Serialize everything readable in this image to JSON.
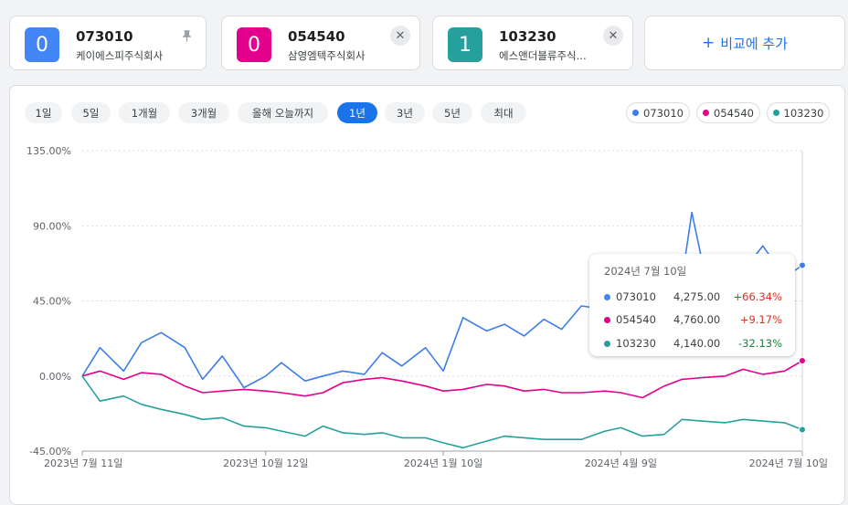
{
  "cards": [
    {
      "badge": "0",
      "ticker": "073010",
      "name": "케이에스피주식회사",
      "color": "#4285f4",
      "action": "pin-icon"
    },
    {
      "badge": "0",
      "ticker": "054540",
      "name": "삼영엠텍주식회사",
      "color": "#e3008c",
      "action": "close-icon"
    },
    {
      "badge": "1",
      "ticker": "103230",
      "name": "에스앤더블류주식...",
      "color": "#26a09d",
      "action": "close-icon"
    }
  ],
  "add_compare": {
    "label": "비교에 추가"
  },
  "ranges": [
    "1일",
    "5일",
    "1개월",
    "3개월",
    "올해 오늘까지",
    "1년",
    "3년",
    "5년",
    "최대"
  ],
  "selected_range": "1년",
  "tooltip": {
    "date": "2024년 7월 10일",
    "rows": [
      {
        "ticker": "073010",
        "price": "4,275.00",
        "change": "+66.34%",
        "change_color": "#d93025",
        "color": "#4285f4"
      },
      {
        "ticker": "054540",
        "price": "4,760.00",
        "change": "+9.17%",
        "change_color": "#d93025",
        "color": "#e3008c"
      },
      {
        "ticker": "103230",
        "price": "4,140.00",
        "change": "-32.13%",
        "change_color": "#188038",
        "color": "#26a09d"
      }
    ]
  },
  "chart_data": {
    "type": "line",
    "y_tick_labels": [
      "135.00%",
      "90.00%",
      "45.00%",
      "0.00%",
      "-45.00%"
    ],
    "y_ticks": [
      135,
      90,
      45,
      0,
      -45
    ],
    "ylim": [
      -45,
      135
    ],
    "x_tick_labels": [
      "2023년 7월 11일",
      "2023년 10월 12일",
      "2024년 1월 10일",
      "2024년 4월 9일",
      "2024년 7월 10일"
    ],
    "x_tick_dates": [
      "2023-07-11",
      "2023-10-12",
      "2024-01-10",
      "2024-04-09",
      "2024-07-10"
    ],
    "x_range": [
      "2023-07-11",
      "2024-07-10"
    ],
    "grid": true,
    "legend": "top-right",
    "series": [
      {
        "name": "073010",
        "color": "#3d7ee6",
        "x": [
          "2023-07-11",
          "2023-07-20",
          "2023-08-01",
          "2023-08-10",
          "2023-08-20",
          "2023-09-01",
          "2023-09-10",
          "2023-09-20",
          "2023-10-01",
          "2023-10-12",
          "2023-10-20",
          "2023-11-01",
          "2023-11-10",
          "2023-11-20",
          "2023-12-01",
          "2023-12-10",
          "2023-12-20",
          "2024-01-01",
          "2024-01-10",
          "2024-01-20",
          "2024-02-01",
          "2024-02-10",
          "2024-02-20",
          "2024-03-01",
          "2024-03-10",
          "2024-03-20",
          "2024-04-01",
          "2024-04-09",
          "2024-04-20",
          "2024-05-01",
          "2024-05-10",
          "2024-05-15",
          "2024-05-20",
          "2024-06-01",
          "2024-06-10",
          "2024-06-20",
          "2024-07-01",
          "2024-07-10"
        ],
        "values": [
          0,
          17,
          3,
          20,
          26,
          17,
          -2,
          12,
          -7,
          0,
          8,
          -3,
          0,
          3,
          1,
          14,
          6,
          17,
          3,
          35,
          27,
          31,
          24,
          34,
          28,
          42,
          40,
          50,
          47,
          55,
          58,
          98,
          70,
          56,
          63,
          78,
          59,
          66.34
        ]
      },
      {
        "name": "054540",
        "color": "#e3008c",
        "x": [
          "2023-07-11",
          "2023-07-20",
          "2023-08-01",
          "2023-08-10",
          "2023-08-20",
          "2023-09-01",
          "2023-09-10",
          "2023-09-20",
          "2023-10-01",
          "2023-10-12",
          "2023-10-20",
          "2023-11-01",
          "2023-11-10",
          "2023-11-20",
          "2023-12-01",
          "2023-12-10",
          "2023-12-20",
          "2024-01-01",
          "2024-01-10",
          "2024-01-20",
          "2024-02-01",
          "2024-02-10",
          "2024-02-20",
          "2024-03-01",
          "2024-03-10",
          "2024-03-20",
          "2024-04-01",
          "2024-04-09",
          "2024-04-20",
          "2024-05-01",
          "2024-05-10",
          "2024-05-20",
          "2024-06-01",
          "2024-06-10",
          "2024-06-20",
          "2024-07-01",
          "2024-07-10"
        ],
        "values": [
          0,
          3,
          -2,
          2,
          1,
          -6,
          -10,
          -9,
          -8,
          -9,
          -10,
          -12,
          -10,
          -4,
          -2,
          -1,
          -3,
          -6,
          -9,
          -8,
          -5,
          -6,
          -9,
          -8,
          -10,
          -10,
          -9,
          -10,
          -13,
          -6,
          -2,
          -1,
          0,
          4,
          1,
          3,
          9.17
        ]
      },
      {
        "name": "103230",
        "color": "#26a09d",
        "x": [
          "2023-07-11",
          "2023-07-20",
          "2023-08-01",
          "2023-08-10",
          "2023-08-20",
          "2023-09-01",
          "2023-09-10",
          "2023-09-20",
          "2023-10-01",
          "2023-10-12",
          "2023-10-20",
          "2023-11-01",
          "2023-11-10",
          "2023-11-20",
          "2023-12-01",
          "2023-12-10",
          "2023-12-20",
          "2024-01-01",
          "2024-01-10",
          "2024-01-20",
          "2024-02-01",
          "2024-02-10",
          "2024-02-20",
          "2024-03-01",
          "2024-03-10",
          "2024-03-20",
          "2024-04-01",
          "2024-04-09",
          "2024-04-20",
          "2024-05-01",
          "2024-05-10",
          "2024-05-20",
          "2024-06-01",
          "2024-06-10",
          "2024-06-20",
          "2024-07-01",
          "2024-07-10"
        ],
        "values": [
          0,
          -15,
          -12,
          -17,
          -20,
          -23,
          -26,
          -25,
          -30,
          -31,
          -33,
          -36,
          -30,
          -34,
          -35,
          -34,
          -37,
          -37,
          -40,
          -43,
          -39,
          -36,
          -37,
          -38,
          -38,
          -38,
          -33,
          -31,
          -36,
          -35,
          -26,
          -27,
          -28,
          -26,
          -27,
          -28,
          -32.13
        ]
      }
    ]
  }
}
